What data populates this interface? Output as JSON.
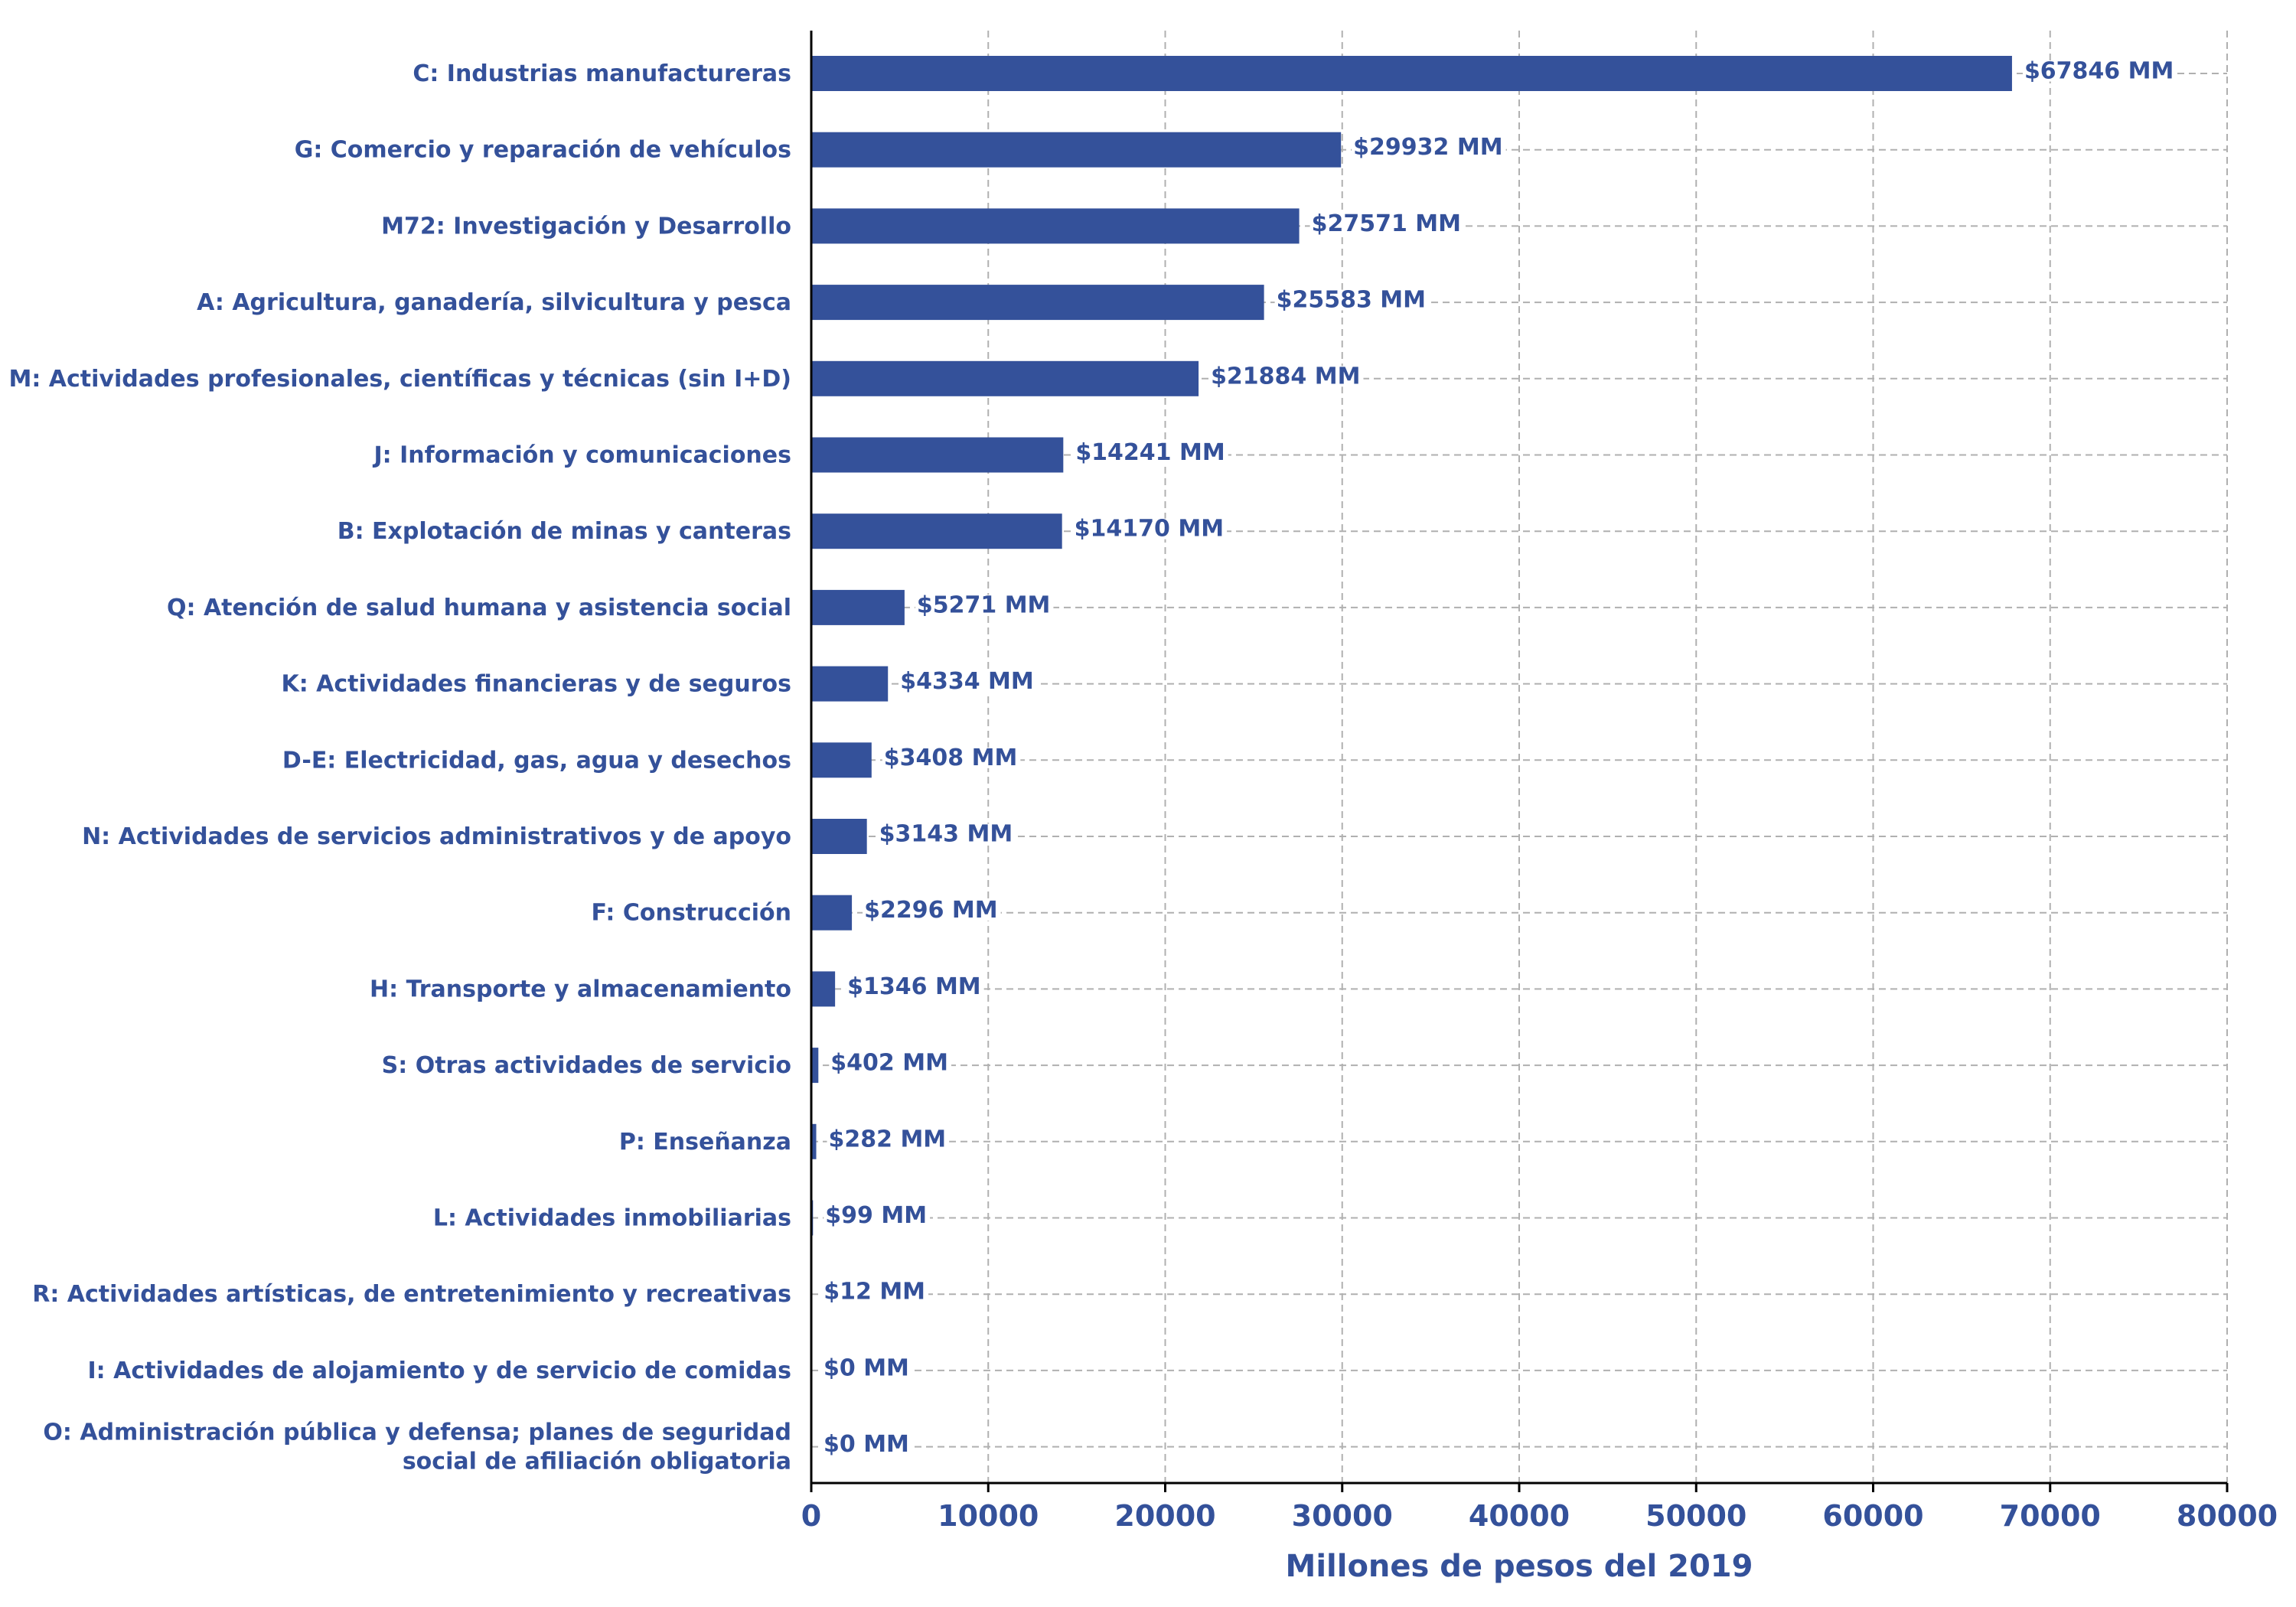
{
  "chart_data": {
    "type": "bar",
    "orientation": "horizontal",
    "categories": [
      "C: Industrias manufactureras",
      "G: Comercio y reparación de vehículos",
      "M72: Investigación y Desarrollo",
      "A: Agricultura, ganadería, silvicultura y pesca",
      "M: Actividades profesionales, científicas y técnicas (sin I+D)",
      "J: Información y comunicaciones",
      "B: Explotación de minas y canteras",
      "Q: Atención de salud humana y asistencia social",
      "K: Actividades financieras y de seguros",
      "D-E: Electricidad, gas, agua y desechos",
      "N: Actividades de servicios administrativos y de apoyo",
      "F: Construcción",
      "H: Transporte y almacenamiento",
      "S: Otras actividades de servicio",
      "P: Enseñanza",
      "L: Actividades inmobiliarias",
      "R: Actividades artísticas, de entretenimiento y recreativas",
      "I: Actividades de alojamiento y de servicio de comidas",
      "O: Administración pública y defensa; planes de seguridad social de afiliación obligatoria"
    ],
    "category_lines": [
      [
        "C: Industrias manufactureras"
      ],
      [
        "G: Comercio y reparación de vehículos"
      ],
      [
        "M72: Investigación y Desarrollo"
      ],
      [
        "A: Agricultura, ganadería, silvicultura y pesca"
      ],
      [
        "M: Actividades profesionales, científicas y técnicas (sin I+D)"
      ],
      [
        "J: Información y comunicaciones"
      ],
      [
        "B: Explotación de minas y canteras"
      ],
      [
        "Q: Atención de salud humana y asistencia social"
      ],
      [
        "K: Actividades financieras y de seguros"
      ],
      [
        "D-E: Electricidad, gas, agua y desechos"
      ],
      [
        "N: Actividades de servicios administrativos y de apoyo"
      ],
      [
        "F: Construcción"
      ],
      [
        "H: Transporte y almacenamiento"
      ],
      [
        "S: Otras actividades de servicio"
      ],
      [
        "P: Enseñanza"
      ],
      [
        "L: Actividades inmobiliarias"
      ],
      [
        "R: Actividades artísticas, de entretenimiento y recreativas"
      ],
      [
        "I: Actividades de alojamiento y de servicio de comidas"
      ],
      [
        "O: Administración pública y defensa; planes de seguridad",
        "social de afiliación obligatoria"
      ]
    ],
    "values": [
      67846,
      29932,
      27571,
      25583,
      21884,
      14241,
      14170,
      5271,
      4334,
      3408,
      3143,
      2296,
      1346,
      402,
      282,
      99,
      12,
      0,
      0
    ],
    "value_labels": [
      "$67846 MM",
      "$29932 MM",
      "$27571 MM",
      "$25583 MM",
      "$21884 MM",
      "$14241 MM",
      "$14170 MM",
      "$5271 MM",
      "$4334 MM",
      "$3408 MM",
      "$3143 MM",
      "$2296 MM",
      "$1346 MM",
      "$402 MM",
      "$282 MM",
      "$99 MM",
      "$12 MM",
      "$0 MM",
      "$0 MM"
    ],
    "xlabel": "Millones de pesos del 2019",
    "xlim": [
      0,
      80000
    ],
    "xticks": [
      0,
      10000,
      20000,
      30000,
      40000,
      50000,
      60000,
      70000,
      80000
    ],
    "xtick_labels": [
      "0",
      "10000",
      "20000",
      "30000",
      "40000",
      "50000",
      "60000",
      "70000",
      "80000"
    ],
    "grid": true,
    "grid_style": "dashed",
    "colors": {
      "bar": "#34519a",
      "text": "#34519a",
      "grid": "#b0b0b0",
      "axis": "#000000"
    }
  }
}
